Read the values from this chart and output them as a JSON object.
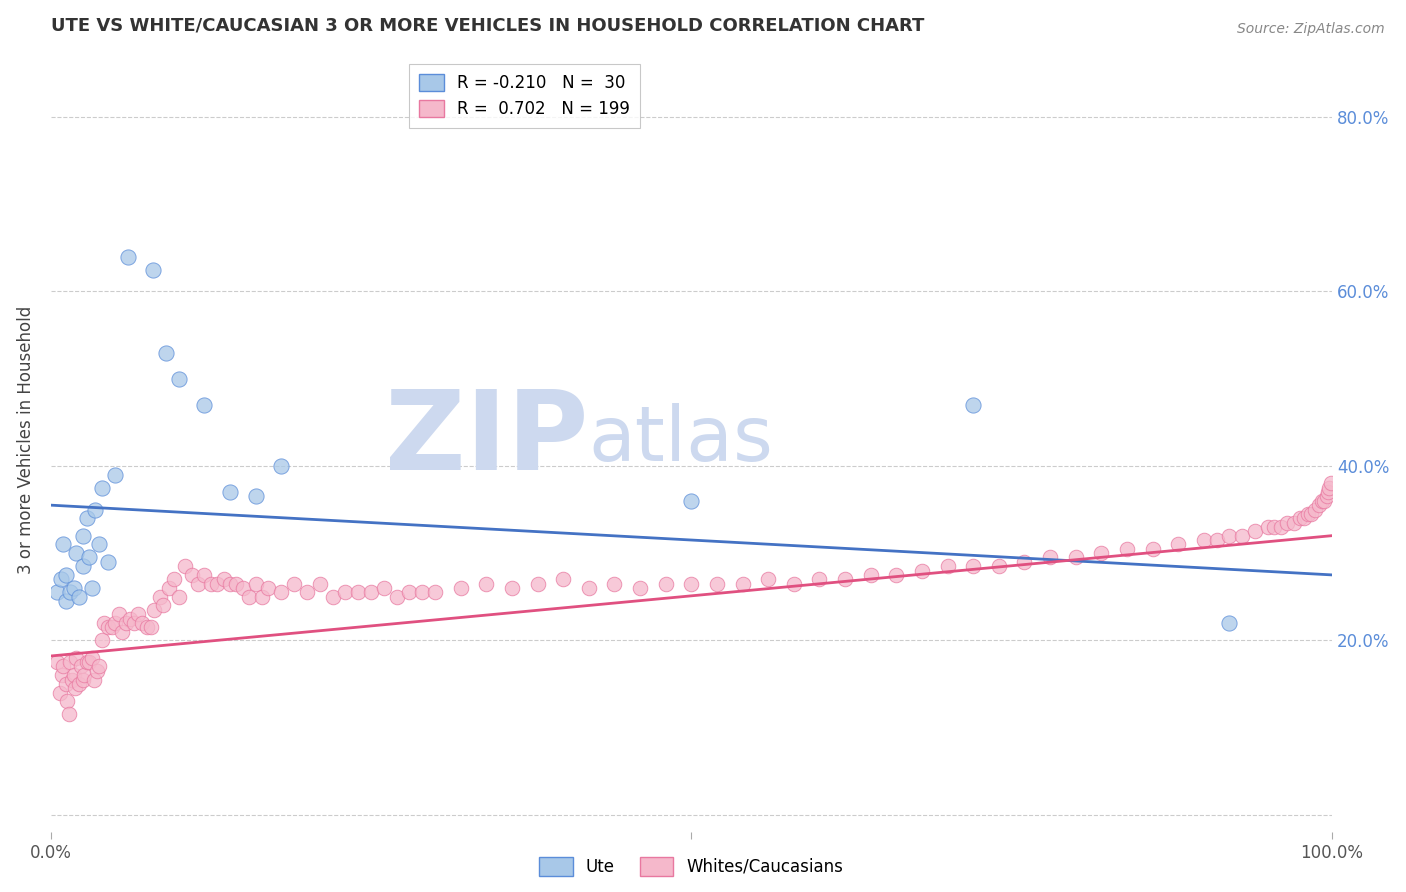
{
  "title": "UTE VS WHITE/CAUCASIAN 3 OR MORE VEHICLES IN HOUSEHOLD CORRELATION CHART",
  "source": "Source: ZipAtlas.com",
  "ylabel": "3 or more Vehicles in Household",
  "xlim": [
    0.0,
    1.0
  ],
  "ylim": [
    -0.02,
    0.88
  ],
  "yticks": [
    0.0,
    0.2,
    0.4,
    0.6,
    0.8
  ],
  "xticks": [
    0.0,
    0.5,
    1.0
  ],
  "xtick_labels": [
    "0.0%",
    "",
    "100.0%"
  ],
  "right_ytick_labels": [
    "",
    "20.0%",
    "40.0%",
    "60.0%",
    "80.0%"
  ],
  "grid_color": "#cccccc",
  "background_color": "#ffffff",
  "watermark_ZIP": "ZIP",
  "watermark_atlas": "atlas",
  "watermark_color": "#cdd9ef",
  "legend_R_ute": "-0.210",
  "legend_N_ute": "30",
  "legend_R_white": "0.702",
  "legend_N_white": "199",
  "ute_color": "#a8c8e8",
  "ute_edge_color": "#5b8dd9",
  "ute_line_color": "#4472c4",
  "white_color": "#f5b8cb",
  "white_edge_color": "#e878a0",
  "white_line_color": "#e05080",
  "ute_trend_start_y": 0.355,
  "ute_trend_end_y": 0.275,
  "white_trend_start_y": 0.182,
  "white_trend_end_y": 0.32,
  "ute_points_x": [
    0.005,
    0.008,
    0.01,
    0.012,
    0.012,
    0.015,
    0.018,
    0.02,
    0.022,
    0.025,
    0.025,
    0.028,
    0.03,
    0.032,
    0.035,
    0.038,
    0.04,
    0.045,
    0.05,
    0.06,
    0.08,
    0.09,
    0.1,
    0.12,
    0.14,
    0.16,
    0.18,
    0.5,
    0.72,
    0.92
  ],
  "ute_points_y": [
    0.255,
    0.27,
    0.31,
    0.245,
    0.275,
    0.255,
    0.26,
    0.3,
    0.25,
    0.285,
    0.32,
    0.34,
    0.295,
    0.26,
    0.35,
    0.31,
    0.375,
    0.29,
    0.39,
    0.64,
    0.625,
    0.53,
    0.5,
    0.47,
    0.37,
    0.365,
    0.4,
    0.36,
    0.47,
    0.22
  ],
  "white_points_x": [
    0.005,
    0.007,
    0.009,
    0.01,
    0.012,
    0.013,
    0.014,
    0.015,
    0.017,
    0.018,
    0.019,
    0.02,
    0.022,
    0.024,
    0.025,
    0.026,
    0.028,
    0.03,
    0.032,
    0.034,
    0.036,
    0.038,
    0.04,
    0.042,
    0.045,
    0.048,
    0.05,
    0.053,
    0.056,
    0.059,
    0.062,
    0.065,
    0.068,
    0.071,
    0.075,
    0.078,
    0.081,
    0.085,
    0.088,
    0.092,
    0.096,
    0.1,
    0.105,
    0.11,
    0.115,
    0.12,
    0.125,
    0.13,
    0.135,
    0.14,
    0.145,
    0.15,
    0.155,
    0.16,
    0.165,
    0.17,
    0.18,
    0.19,
    0.2,
    0.21,
    0.22,
    0.23,
    0.24,
    0.25,
    0.26,
    0.27,
    0.28,
    0.29,
    0.3,
    0.32,
    0.34,
    0.36,
    0.38,
    0.4,
    0.42,
    0.44,
    0.46,
    0.48,
    0.5,
    0.52,
    0.54,
    0.56,
    0.58,
    0.6,
    0.62,
    0.64,
    0.66,
    0.68,
    0.7,
    0.72,
    0.74,
    0.76,
    0.78,
    0.8,
    0.82,
    0.84,
    0.86,
    0.88,
    0.9,
    0.91,
    0.92,
    0.93,
    0.94,
    0.95,
    0.955,
    0.96,
    0.965,
    0.97,
    0.975,
    0.978,
    0.981,
    0.984,
    0.987,
    0.99,
    0.992,
    0.994,
    0.996,
    0.997,
    0.998,
    0.999
  ],
  "white_points_y": [
    0.175,
    0.14,
    0.16,
    0.17,
    0.15,
    0.13,
    0.115,
    0.175,
    0.155,
    0.16,
    0.145,
    0.18,
    0.15,
    0.17,
    0.155,
    0.16,
    0.175,
    0.175,
    0.18,
    0.155,
    0.165,
    0.17,
    0.2,
    0.22,
    0.215,
    0.215,
    0.22,
    0.23,
    0.21,
    0.22,
    0.225,
    0.22,
    0.23,
    0.22,
    0.215,
    0.215,
    0.235,
    0.25,
    0.24,
    0.26,
    0.27,
    0.25,
    0.285,
    0.275,
    0.265,
    0.275,
    0.265,
    0.265,
    0.27,
    0.265,
    0.265,
    0.26,
    0.25,
    0.265,
    0.25,
    0.26,
    0.255,
    0.265,
    0.255,
    0.265,
    0.25,
    0.255,
    0.255,
    0.255,
    0.26,
    0.25,
    0.255,
    0.255,
    0.255,
    0.26,
    0.265,
    0.26,
    0.265,
    0.27,
    0.26,
    0.265,
    0.26,
    0.265,
    0.265,
    0.265,
    0.265,
    0.27,
    0.265,
    0.27,
    0.27,
    0.275,
    0.275,
    0.28,
    0.285,
    0.285,
    0.285,
    0.29,
    0.295,
    0.295,
    0.3,
    0.305,
    0.305,
    0.31,
    0.315,
    0.315,
    0.32,
    0.32,
    0.325,
    0.33,
    0.33,
    0.33,
    0.335,
    0.335,
    0.34,
    0.34,
    0.345,
    0.345,
    0.35,
    0.355,
    0.36,
    0.36,
    0.365,
    0.37,
    0.375,
    0.38
  ]
}
